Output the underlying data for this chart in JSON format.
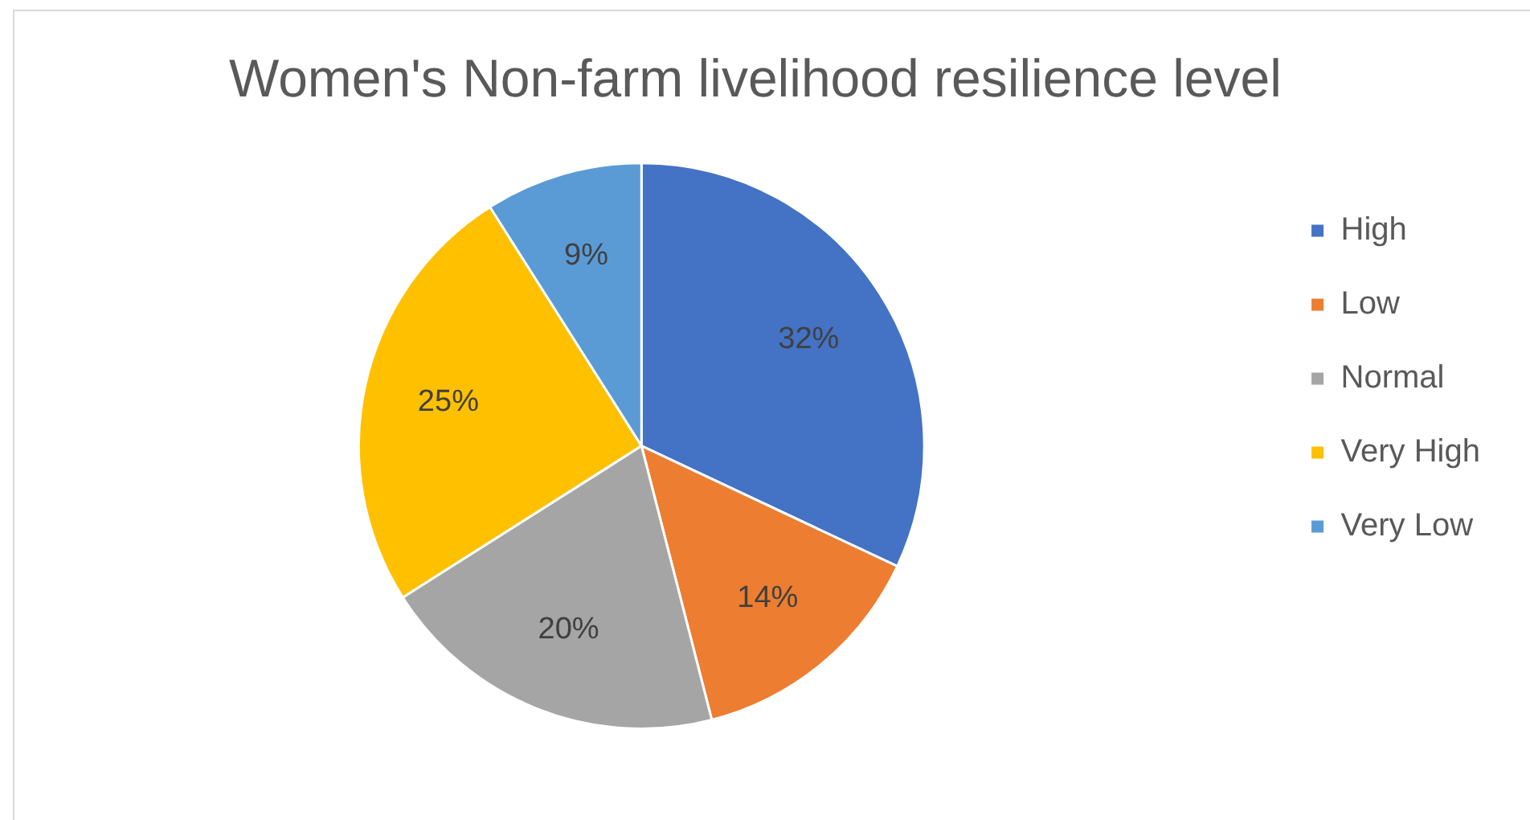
{
  "chart_data": {
    "type": "pie",
    "title": "Women's Non-farm livelihood resilience level",
    "categories": [
      "High",
      "Low",
      "Normal",
      "Very High",
      "Very Low"
    ],
    "values": [
      32,
      14,
      20,
      25,
      9
    ],
    "value_labels": [
      "32%",
      "14%",
      "20%",
      "25%",
      "9%"
    ],
    "colors": [
      "#4472c4",
      "#ed7d31",
      "#a5a5a5",
      "#ffc000",
      "#5b9bd5"
    ],
    "legend": "right"
  }
}
